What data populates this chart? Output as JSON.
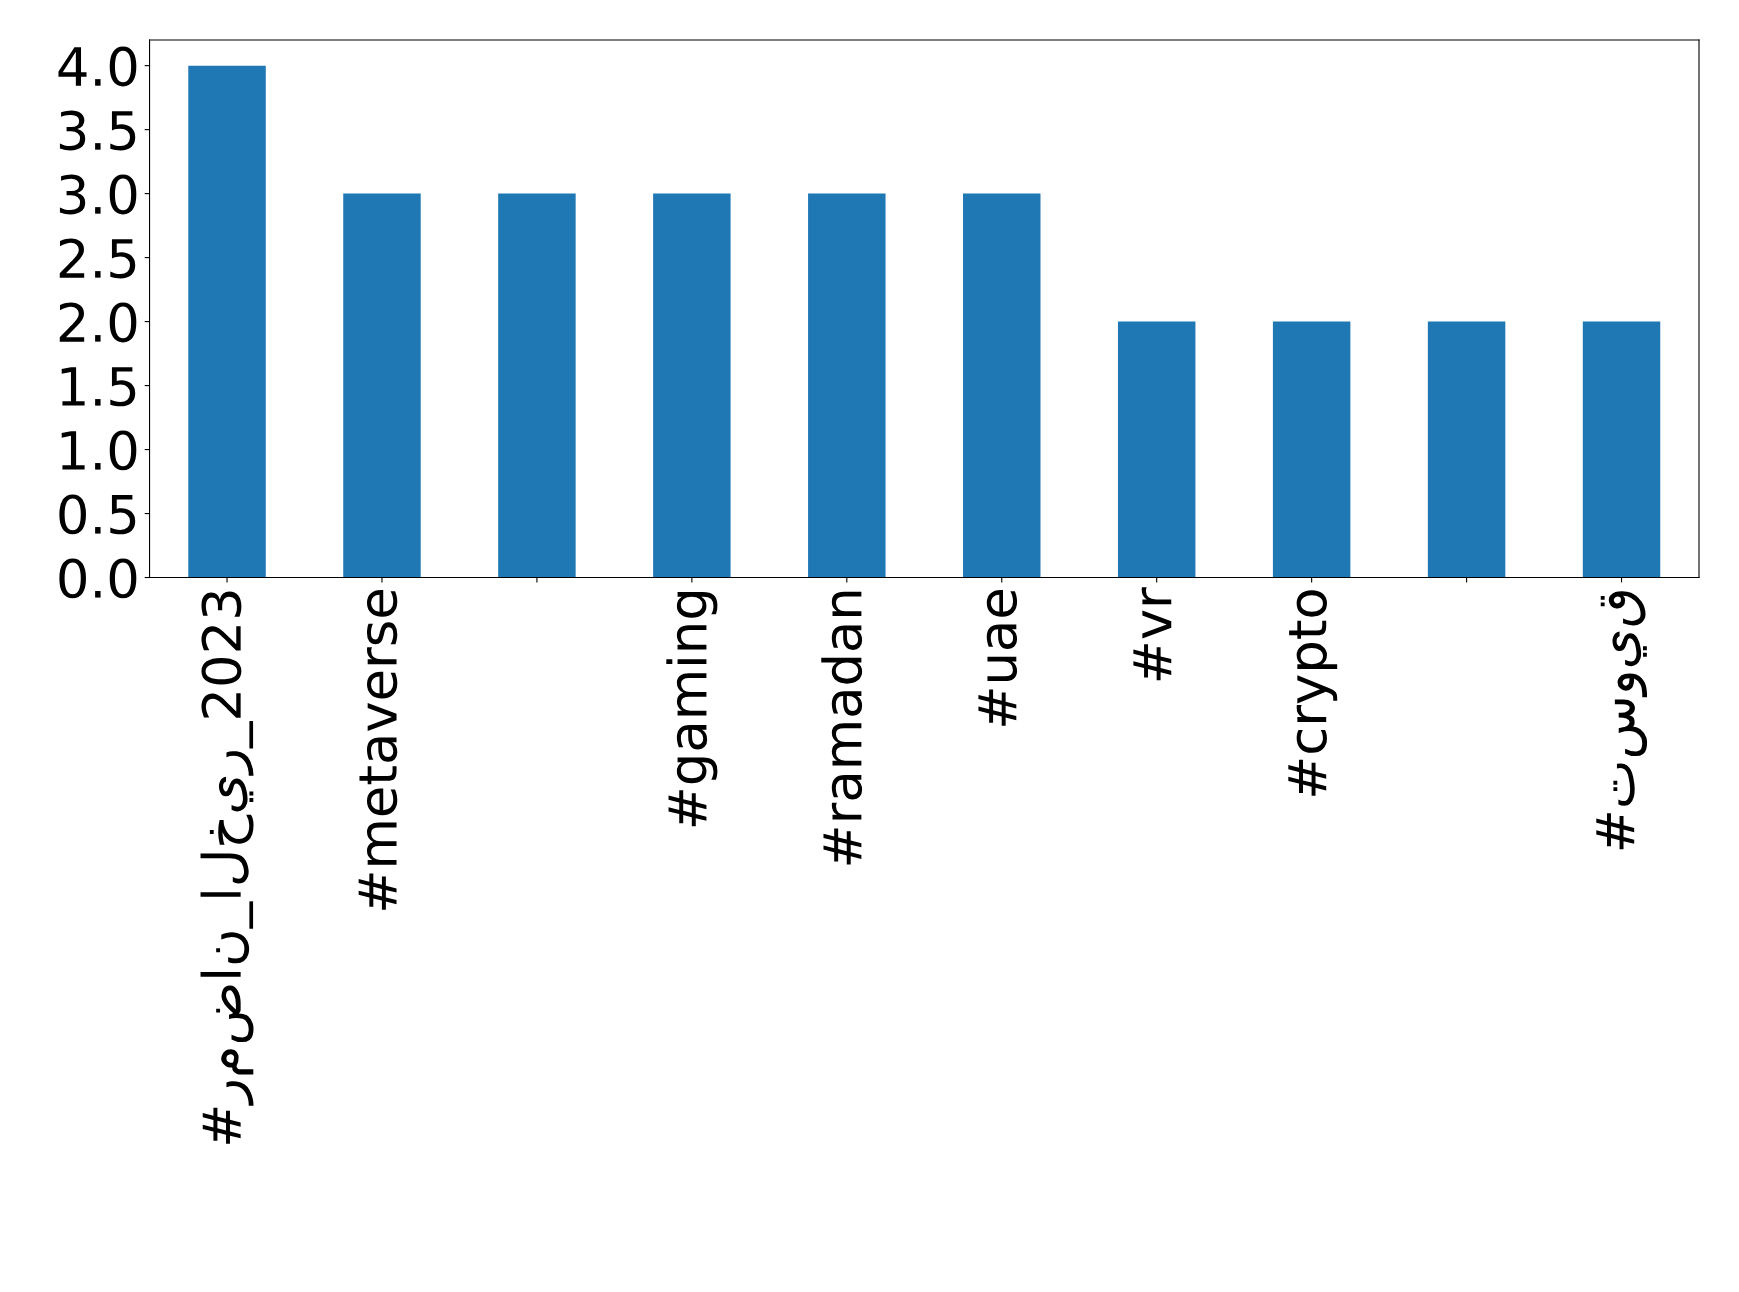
{
  "chart_data": {
    "type": "bar",
    "categories": [
      "#رمضان_الخير_2023",
      "#metaverse",
      null,
      "#gaming",
      "#ramadan",
      "#uae",
      "#vr",
      "#crypto",
      null,
      "#تسويق"
    ],
    "values": [
      4,
      3,
      3,
      3,
      3,
      3,
      2,
      2,
      2,
      2
    ],
    "color": "#1f77b4",
    "ylim": [
      0,
      4.2
    ],
    "yticks": [
      {
        "value": 0,
        "label": "0.0"
      },
      {
        "value": 0.5,
        "label": "0.5"
      },
      {
        "value": 1,
        "label": "1.0"
      },
      {
        "value": 1.5,
        "label": "1.5"
      },
      {
        "value": 2,
        "label": "2.0"
      },
      {
        "value": 2.5,
        "label": "2.5"
      },
      {
        "value": 3,
        "label": "3.0"
      },
      {
        "value": 3.5,
        "label": "3.5"
      },
      {
        "value": 4,
        "label": "4.0"
      }
    ],
    "grid": false,
    "legend": false
  }
}
